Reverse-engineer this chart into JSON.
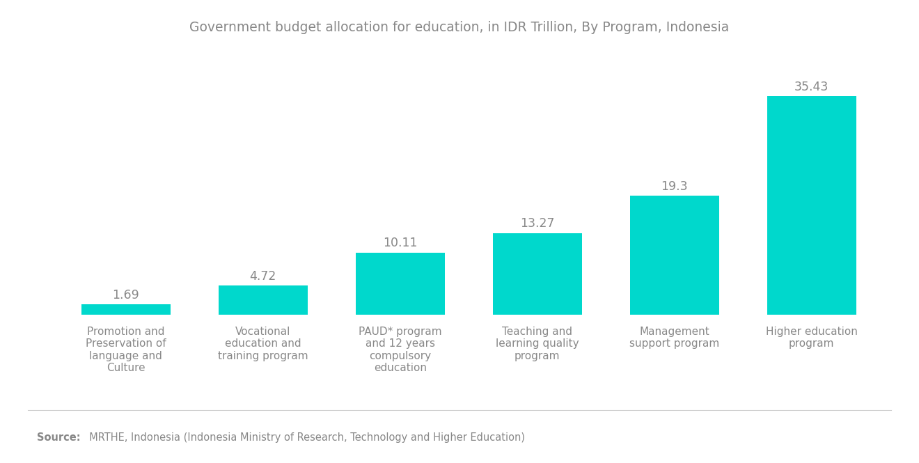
{
  "title": "Government budget allocation for education, in IDR Trillion, By Program, Indonesia",
  "categories": [
    "Promotion and\nPreservation of\nlanguage and\nCulture",
    "Vocational\neducation and\ntraining program",
    "PAUD* program\nand 12 years\ncompulsory\neducation",
    "Teaching and\nlearning quality\nprogram",
    "Management\nsupport program",
    "Higher education\nprogram"
  ],
  "values": [
    1.69,
    4.72,
    10.11,
    13.27,
    19.3,
    35.43
  ],
  "bar_color": "#00D8CC",
  "value_color": "#888888",
  "title_color": "#888888",
  "label_color": "#888888",
  "source_label": "Source:",
  "source_text": "  MRTHE, Indonesia (Indonesia Ministry of Research, Technology and Higher Education)",
  "background_color": "#ffffff",
  "ylim": [
    0,
    42
  ],
  "bar_width": 0.65
}
